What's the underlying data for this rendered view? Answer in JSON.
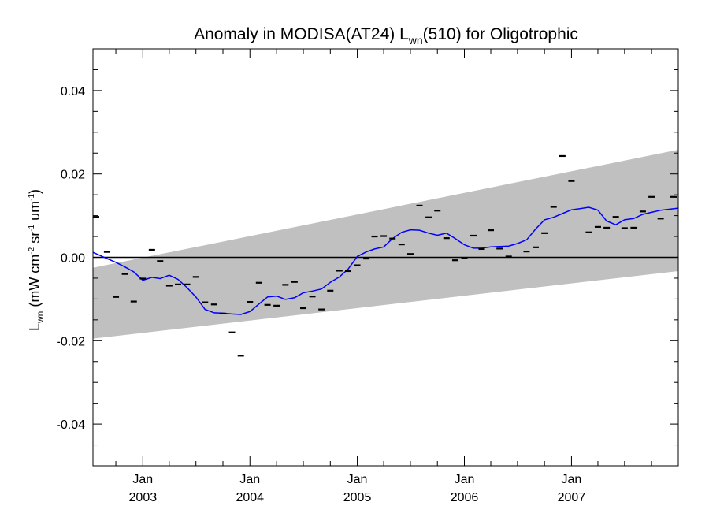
{
  "chart_data": {
    "type": "scatter",
    "title": {
      "prefix": "Anomaly in MODISA(AT24) L",
      "subscript": "wn",
      "suffix": "(510) for Oligotrophic"
    },
    "xlabel": "",
    "ylabel": {
      "symbol": "L",
      "symbol_subscript": "wn",
      "units_parts": [
        {
          "text": " (mW cm",
          "sup": false
        },
        {
          "text": "-2",
          "sup": true
        },
        {
          "text": " sr",
          "sup": false
        },
        {
          "text": "-1",
          "sup": true
        },
        {
          "text": " um",
          "sup": false
        },
        {
          "text": "-1",
          "sup": true
        },
        {
          "text": ")",
          "sup": false
        }
      ]
    },
    "xlim": [
      "2002-07-15",
      "2007-12-31"
    ],
    "ylim": [
      -0.05,
      0.05
    ],
    "y_ticks": [
      {
        "value": -0.04,
        "label": "-0.04"
      },
      {
        "value": -0.02,
        "label": "-0.02"
      },
      {
        "value": 0.0,
        "label": "0.00"
      },
      {
        "value": 0.02,
        "label": "0.02"
      },
      {
        "value": 0.04,
        "label": "0.04"
      }
    ],
    "y_minor_step": 0.005,
    "x_ticks": [
      {
        "date": "2003-01-01",
        "month": "Jan",
        "year": "2003"
      },
      {
        "date": "2004-01-01",
        "month": "Jan",
        "year": "2004"
      },
      {
        "date": "2005-01-01",
        "month": "Jan",
        "year": "2005"
      },
      {
        "date": "2006-01-01",
        "month": "Jan",
        "year": "2006"
      },
      {
        "date": "2007-01-01",
        "month": "Jan",
        "year": "2007"
      }
    ],
    "x_minor_ticks": [
      "2002-10-01",
      "2003-04-01",
      "2003-07-01",
      "2003-10-01",
      "2004-04-01",
      "2004-07-01",
      "2004-10-01",
      "2005-04-01",
      "2005-07-01",
      "2005-10-01",
      "2006-04-01",
      "2006-07-01",
      "2006-10-01",
      "2007-04-01",
      "2007-07-01",
      "2007-10-01"
    ],
    "grid": false,
    "zero_line": 0.0,
    "confidence_band": {
      "color": "#c0c0c0",
      "start": {
        "date": "2002-07-15",
        "lower": -0.0195,
        "upper": -0.0025
      },
      "end": {
        "date": "2007-12-31",
        "lower": -0.0033,
        "upper": 0.0258
      }
    },
    "points": [
      {
        "date": "2002-07-17",
        "y": 0.0097
      },
      {
        "date": "2002-09-01",
        "y": 0.0013
      },
      {
        "date": "2002-10-01",
        "y": -0.0095
      },
      {
        "date": "2002-11-01",
        "y": -0.004
      },
      {
        "date": "2002-12-01",
        "y": -0.0106
      },
      {
        "date": "2003-01-01",
        "y": -0.0051
      },
      {
        "date": "2003-02-01",
        "y": 0.0018
      },
      {
        "date": "2003-03-01",
        "y": -0.0009
      },
      {
        "date": "2003-04-01",
        "y": -0.0068
      },
      {
        "date": "2003-05-01",
        "y": -0.0065
      },
      {
        "date": "2003-06-01",
        "y": -0.0065
      },
      {
        "date": "2003-07-01",
        "y": -0.0047
      },
      {
        "date": "2003-08-01",
        "y": -0.0108
      },
      {
        "date": "2003-09-01",
        "y": -0.0113
      },
      {
        "date": "2003-10-01",
        "y": -0.0135
      },
      {
        "date": "2003-11-01",
        "y": -0.018
      },
      {
        "date": "2003-12-01",
        "y": -0.0236
      },
      {
        "date": "2004-01-01",
        "y": -0.0107
      },
      {
        "date": "2004-02-01",
        "y": -0.0061
      },
      {
        "date": "2004-03-01",
        "y": -0.0114
      },
      {
        "date": "2004-04-01",
        "y": -0.0116
      },
      {
        "date": "2004-05-01",
        "y": -0.0066
      },
      {
        "date": "2004-06-01",
        "y": -0.0059
      },
      {
        "date": "2004-07-01",
        "y": -0.0122
      },
      {
        "date": "2004-08-01",
        "y": -0.0094
      },
      {
        "date": "2004-09-01",
        "y": -0.0125
      },
      {
        "date": "2004-10-01",
        "y": -0.008
      },
      {
        "date": "2004-11-01",
        "y": -0.0032
      },
      {
        "date": "2004-12-01",
        "y": -0.0033
      },
      {
        "date": "2005-01-01",
        "y": -0.0019
      },
      {
        "date": "2005-02-01",
        "y": -0.0003
      },
      {
        "date": "2005-03-01",
        "y": 0.005
      },
      {
        "date": "2005-04-01",
        "y": 0.0051
      },
      {
        "date": "2005-05-01",
        "y": 0.0045
      },
      {
        "date": "2005-06-01",
        "y": 0.0031
      },
      {
        "date": "2005-07-01",
        "y": 0.0008
      },
      {
        "date": "2005-08-01",
        "y": 0.0124
      },
      {
        "date": "2005-09-01",
        "y": 0.0096
      },
      {
        "date": "2005-10-01",
        "y": 0.0112
      },
      {
        "date": "2005-11-01",
        "y": 0.0046
      },
      {
        "date": "2005-12-01",
        "y": -0.0007
      },
      {
        "date": "2006-01-01",
        "y": -0.0002
      },
      {
        "date": "2006-02-01",
        "y": 0.0052
      },
      {
        "date": "2006-03-01",
        "y": 0.002
      },
      {
        "date": "2006-04-01",
        "y": 0.0065
      },
      {
        "date": "2006-05-01",
        "y": 0.0021
      },
      {
        "date": "2006-06-01",
        "y": 0.0002
      },
      {
        "date": "2006-08-01",
        "y": 0.0014
      },
      {
        "date": "2006-09-01",
        "y": 0.0024
      },
      {
        "date": "2006-10-01",
        "y": 0.0058
      },
      {
        "date": "2006-11-01",
        "y": 0.0121
      },
      {
        "date": "2006-12-01",
        "y": 0.0243
      },
      {
        "date": "2007-01-01",
        "y": 0.0183
      },
      {
        "date": "2007-03-01",
        "y": 0.006
      },
      {
        "date": "2007-04-01",
        "y": 0.0073
      },
      {
        "date": "2007-05-01",
        "y": 0.0071
      },
      {
        "date": "2007-06-01",
        "y": 0.0097
      },
      {
        "date": "2007-07-01",
        "y": 0.007
      },
      {
        "date": "2007-08-01",
        "y": 0.0071
      },
      {
        "date": "2007-09-01",
        "y": 0.011
      },
      {
        "date": "2007-10-01",
        "y": 0.0145
      },
      {
        "date": "2007-11-01",
        "y": 0.0093
      },
      {
        "date": "2007-12-15",
        "y": 0.0145
      }
    ],
    "smoothed_line": {
      "color": "#0000ff",
      "points": [
        {
          "date": "2002-07-15",
          "y": 0.0012
        },
        {
          "date": "2002-09-01",
          "y": -0.0003
        },
        {
          "date": "2002-10-01",
          "y": -0.0012
        },
        {
          "date": "2002-11-01",
          "y": -0.0023
        },
        {
          "date": "2002-12-01",
          "y": -0.0035
        },
        {
          "date": "2003-01-01",
          "y": -0.0055
        },
        {
          "date": "2003-02-01",
          "y": -0.0048
        },
        {
          "date": "2003-03-01",
          "y": -0.0051
        },
        {
          "date": "2003-04-01",
          "y": -0.0043
        },
        {
          "date": "2003-05-01",
          "y": -0.0053
        },
        {
          "date": "2003-06-01",
          "y": -0.0073
        },
        {
          "date": "2003-07-01",
          "y": -0.0095
        },
        {
          "date": "2003-08-01",
          "y": -0.0125
        },
        {
          "date": "2003-09-01",
          "y": -0.0133
        },
        {
          "date": "2003-10-01",
          "y": -0.0134
        },
        {
          "date": "2003-11-01",
          "y": -0.0136
        },
        {
          "date": "2003-12-01",
          "y": -0.0137
        },
        {
          "date": "2004-01-01",
          "y": -0.013
        },
        {
          "date": "2004-02-01",
          "y": -0.0112
        },
        {
          "date": "2004-03-01",
          "y": -0.0095
        },
        {
          "date": "2004-04-01",
          "y": -0.0093
        },
        {
          "date": "2004-05-01",
          "y": -0.0101
        },
        {
          "date": "2004-06-01",
          "y": -0.0097
        },
        {
          "date": "2004-07-01",
          "y": -0.0085
        },
        {
          "date": "2004-08-01",
          "y": -0.0081
        },
        {
          "date": "2004-09-01",
          "y": -0.0076
        },
        {
          "date": "2004-10-01",
          "y": -0.006
        },
        {
          "date": "2004-11-01",
          "y": -0.0047
        },
        {
          "date": "2004-12-01",
          "y": -0.0028
        },
        {
          "date": "2005-01-01",
          "y": 0.0002
        },
        {
          "date": "2005-02-01",
          "y": 0.0013
        },
        {
          "date": "2005-03-01",
          "y": 0.002
        },
        {
          "date": "2005-04-01",
          "y": 0.0025
        },
        {
          "date": "2005-05-01",
          "y": 0.0045
        },
        {
          "date": "2005-06-01",
          "y": 0.006
        },
        {
          "date": "2005-07-01",
          "y": 0.0066
        },
        {
          "date": "2005-08-01",
          "y": 0.0065
        },
        {
          "date": "2005-09-01",
          "y": 0.0058
        },
        {
          "date": "2005-10-01",
          "y": 0.0053
        },
        {
          "date": "2005-11-01",
          "y": 0.0058
        },
        {
          "date": "2005-12-01",
          "y": 0.0045
        },
        {
          "date": "2006-01-01",
          "y": 0.003
        },
        {
          "date": "2006-02-01",
          "y": 0.0022
        },
        {
          "date": "2006-03-01",
          "y": 0.0022
        },
        {
          "date": "2006-04-01",
          "y": 0.0025
        },
        {
          "date": "2006-06-01",
          "y": 0.0027
        },
        {
          "date": "2006-07-01",
          "y": 0.0033
        },
        {
          "date": "2006-08-01",
          "y": 0.0042
        },
        {
          "date": "2006-09-01",
          "y": 0.0068
        },
        {
          "date": "2006-10-01",
          "y": 0.009
        },
        {
          "date": "2006-11-01",
          "y": 0.0096
        },
        {
          "date": "2006-12-01",
          "y": 0.0105
        },
        {
          "date": "2007-01-01",
          "y": 0.0114
        },
        {
          "date": "2007-02-01",
          "y": 0.0117
        },
        {
          "date": "2007-03-01",
          "y": 0.012
        },
        {
          "date": "2007-04-01",
          "y": 0.0113
        },
        {
          "date": "2007-05-01",
          "y": 0.0087
        },
        {
          "date": "2007-06-01",
          "y": 0.0078
        },
        {
          "date": "2007-07-01",
          "y": 0.009
        },
        {
          "date": "2007-08-01",
          "y": 0.0093
        },
        {
          "date": "2007-09-01",
          "y": 0.0103
        },
        {
          "date": "2007-10-01",
          "y": 0.0108
        },
        {
          "date": "2007-11-01",
          "y": 0.0113
        },
        {
          "date": "2007-12-31",
          "y": 0.0118
        }
      ]
    }
  }
}
